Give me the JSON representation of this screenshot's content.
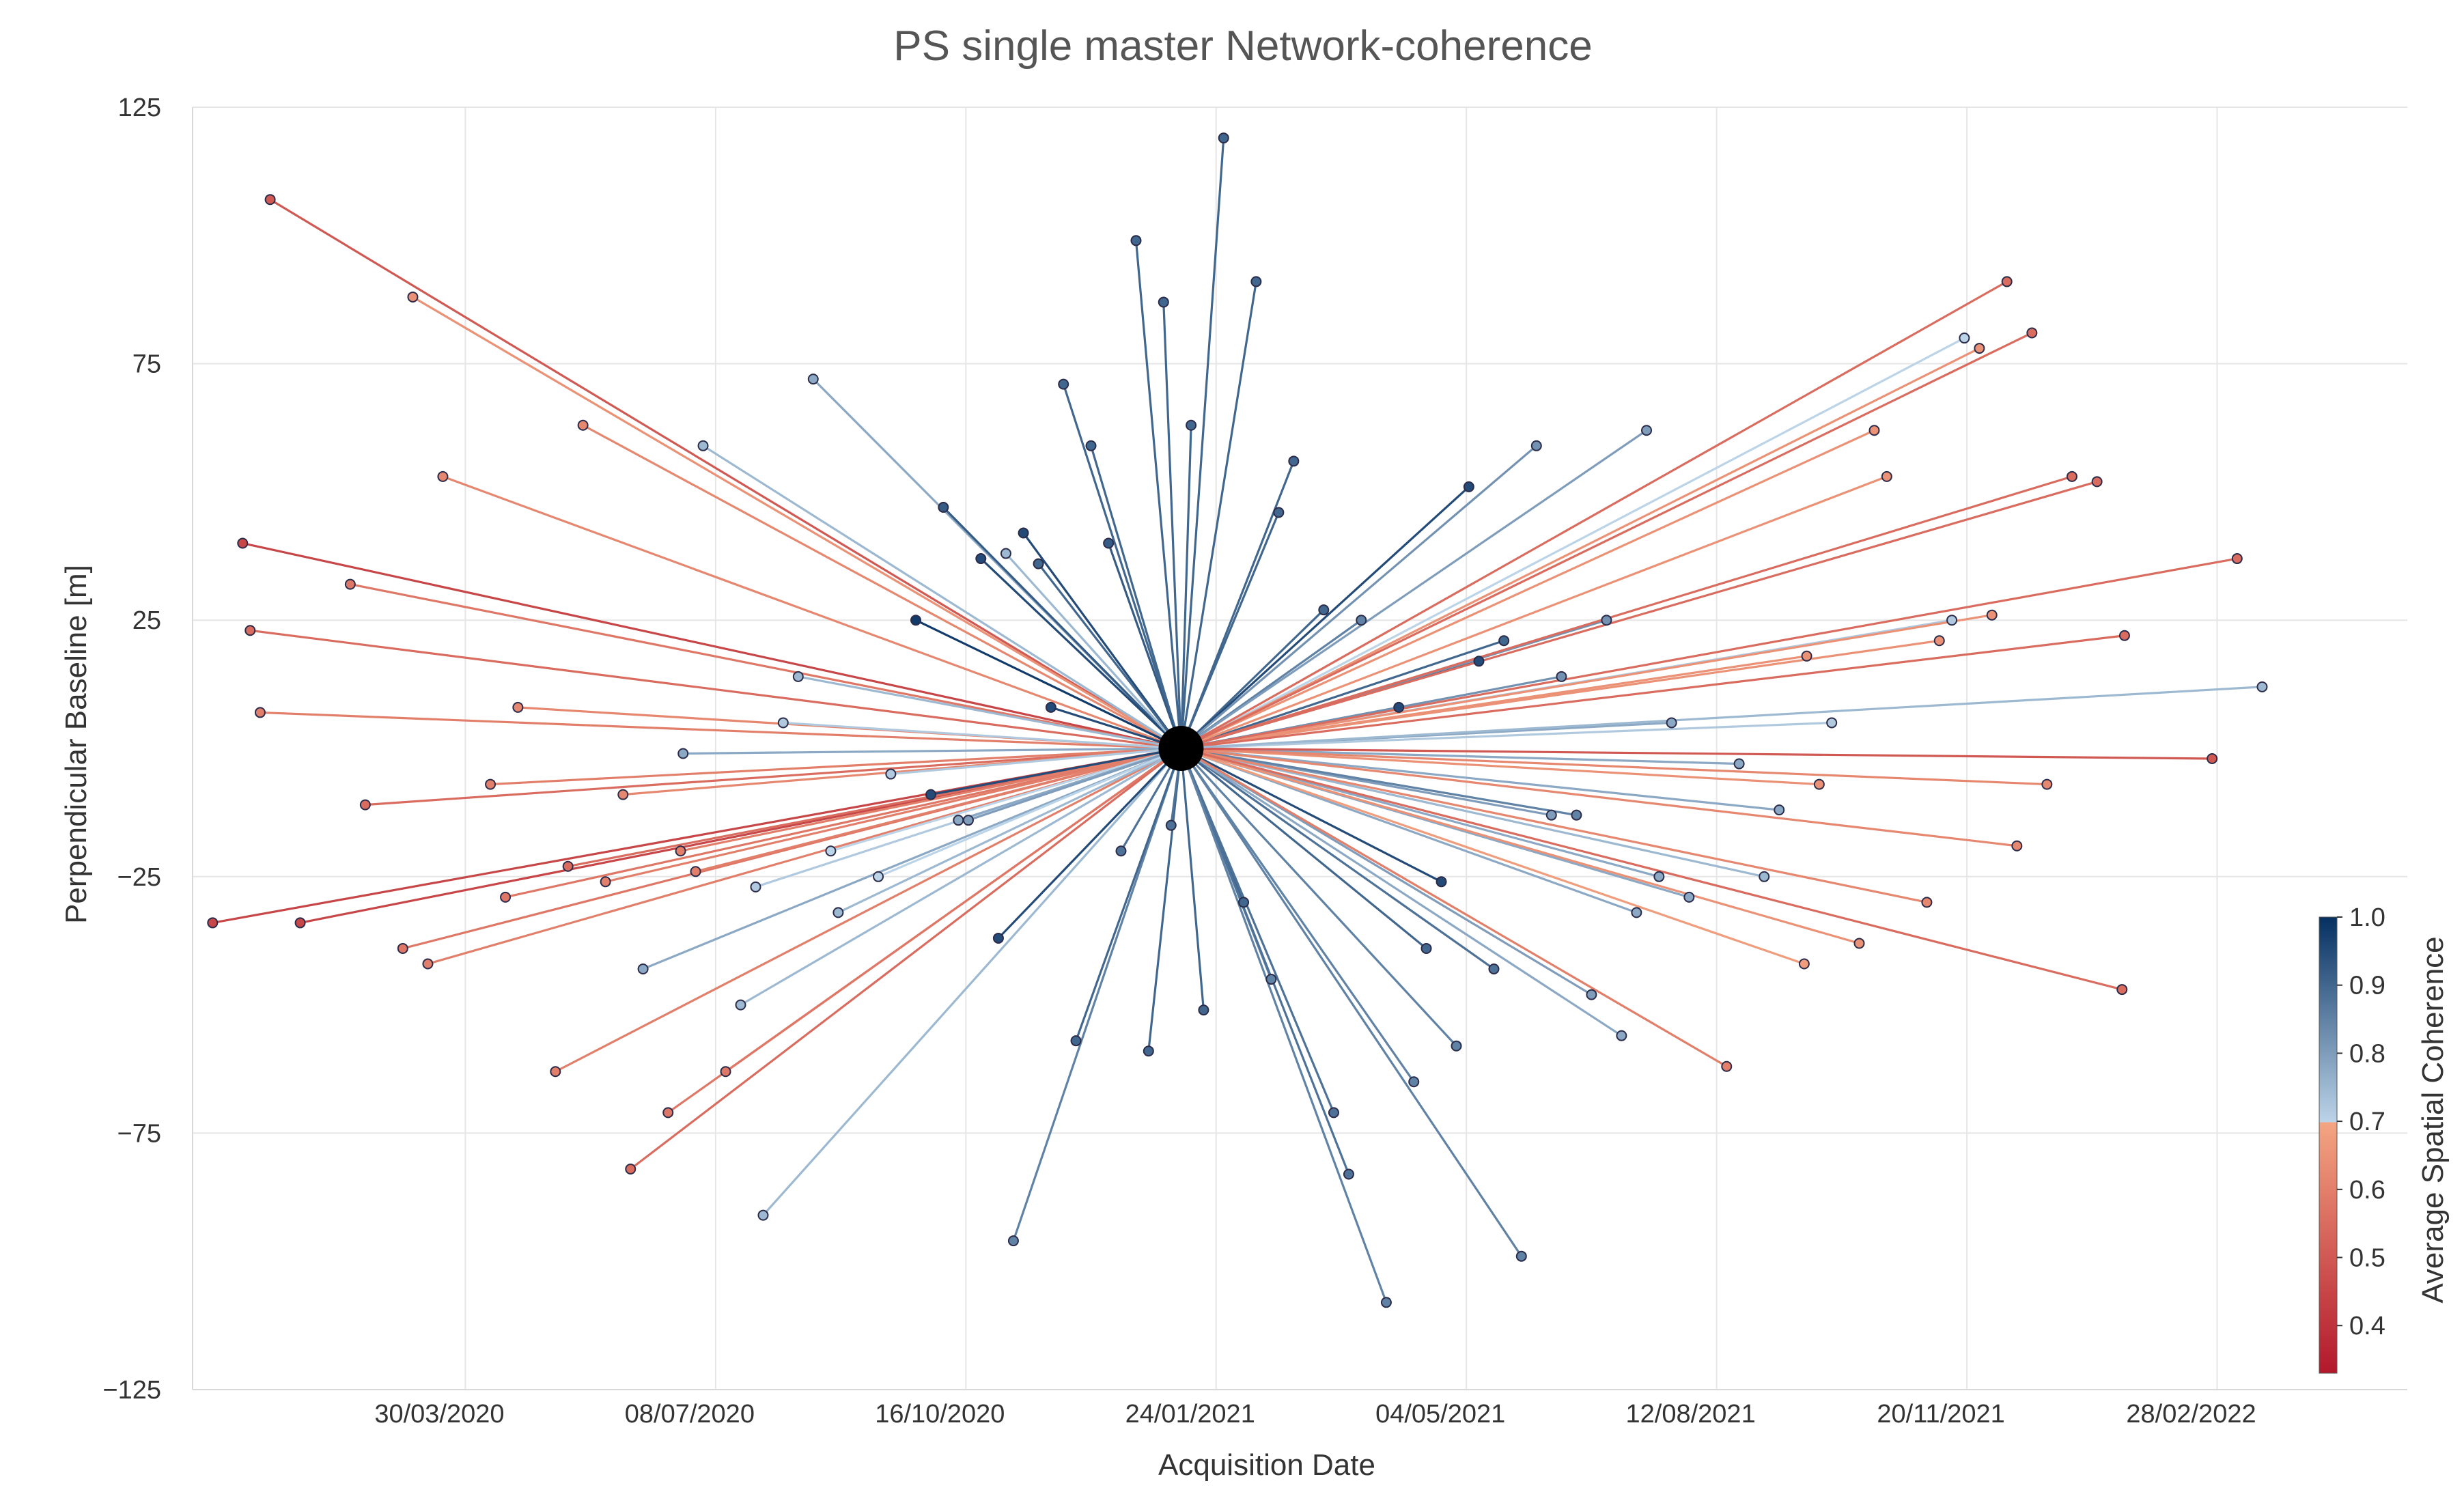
{
  "chart_data": {
    "type": "scatter",
    "title": "PS single master Network-coherence",
    "xlabel": "Acquisition Date",
    "ylabel": "Perpendicular Baseline [m]",
    "xlim": [
      "2019-12-12",
      "2022-05-15"
    ],
    "ylim": [
      -125,
      125
    ],
    "x_ticks": [
      "2020-03-30",
      "2020-07-08",
      "2020-10-16",
      "2021-01-24",
      "2021-05-04",
      "2021-08-12",
      "2021-11-20",
      "2022-02-28"
    ],
    "x_tick_labels": [
      "30/03/2020",
      "08/07/2020",
      "16/10/2020",
      "24/01/2021",
      "04/05/2021",
      "12/08/2021",
      "20/11/2021",
      "28/02/2022"
    ],
    "y_ticks": [
      125,
      75,
      25,
      -25,
      -75,
      -125
    ],
    "y_tick_labels": [
      "125",
      "75",
      "25",
      "−25",
      "−75",
      "−125"
    ],
    "master": {
      "date": "2021-01-10",
      "baseline": 0
    },
    "colorbar": {
      "label": "Average Spatial Coherence",
      "min": 0.33,
      "max": 1.0,
      "ticks": [
        1.0,
        0.9,
        0.8,
        0.7,
        0.6,
        0.5,
        0.4
      ],
      "tick_labels": [
        "1.0",
        "0.9",
        "0.8",
        "0.7",
        "0.6",
        "0.5",
        "0.4"
      ]
    },
    "points": [
      {
        "date": "2020-01-12",
        "b": 107,
        "c": 0.5
      },
      {
        "date": "2020-01-24",
        "b": -34,
        "c": 0.45
      },
      {
        "date": "2020-01-01",
        "b": 40,
        "c": 0.45
      },
      {
        "date": "2019-12-20",
        "b": -34,
        "c": 0.45
      },
      {
        "date": "2020-01-08",
        "b": 7,
        "c": 0.6
      },
      {
        "date": "2020-01-04",
        "b": 23,
        "c": 0.55
      },
      {
        "date": "2020-02-13",
        "b": 32,
        "c": 0.58
      },
      {
        "date": "2020-02-19",
        "b": -11,
        "c": 0.55
      },
      {
        "date": "2020-03-09",
        "b": 88,
        "c": 0.65
      },
      {
        "date": "2020-03-05",
        "b": -39,
        "c": 0.58
      },
      {
        "date": "2020-03-15",
        "b": -42,
        "c": 0.6
      },
      {
        "date": "2020-03-21",
        "b": 53,
        "c": 0.62
      },
      {
        "date": "2020-04-09",
        "b": -7,
        "c": 0.6
      },
      {
        "date": "2020-04-15",
        "b": -29,
        "c": 0.58
      },
      {
        "date": "2020-04-20",
        "b": 8,
        "c": 0.62
      },
      {
        "date": "2020-05-05",
        "b": -63,
        "c": 0.6
      },
      {
        "date": "2020-05-10",
        "b": -23,
        "c": 0.55
      },
      {
        "date": "2020-05-16",
        "b": 63,
        "c": 0.62
      },
      {
        "date": "2020-05-25",
        "b": -26,
        "c": 0.6
      },
      {
        "date": "2020-06-01",
        "b": -9,
        "c": 0.62
      },
      {
        "date": "2020-06-04",
        "b": -82,
        "c": 0.55
      },
      {
        "date": "2020-06-09",
        "b": -43,
        "c": 0.78
      },
      {
        "date": "2020-06-19",
        "b": -71,
        "c": 0.58
      },
      {
        "date": "2020-06-25",
        "b": -1,
        "c": 0.78
      },
      {
        "date": "2020-06-24",
        "b": -20,
        "c": 0.6
      },
      {
        "date": "2020-06-30",
        "b": -24,
        "c": 0.6
      },
      {
        "date": "2020-07-03",
        "b": 59,
        "c": 0.75
      },
      {
        "date": "2020-07-12",
        "b": -63,
        "c": 0.58
      },
      {
        "date": "2020-07-18",
        "b": -50,
        "c": 0.75
      },
      {
        "date": "2020-07-24",
        "b": -27,
        "c": 0.72
      },
      {
        "date": "2020-07-27",
        "b": -91,
        "c": 0.75
      },
      {
        "date": "2020-08-04",
        "b": 5,
        "c": 0.72
      },
      {
        "date": "2020-08-10",
        "b": 14,
        "c": 0.75
      },
      {
        "date": "2020-08-16",
        "b": 72,
        "c": 0.78
      },
      {
        "date": "2020-08-26",
        "b": -32,
        "c": 0.75
      },
      {
        "date": "2020-08-23",
        "b": -20,
        "c": 0.7
      },
      {
        "date": "2020-09-11",
        "b": -25,
        "c": 0.7
      },
      {
        "date": "2020-09-16",
        "b": -5,
        "c": 0.72
      },
      {
        "date": "2020-09-26",
        "b": 25,
        "c": 0.98
      },
      {
        "date": "2020-10-02",
        "b": -9,
        "c": 0.95
      },
      {
        "date": "2020-10-07",
        "b": 47,
        "c": 0.92
      },
      {
        "date": "2020-10-13",
        "b": -14,
        "c": 0.78
      },
      {
        "date": "2020-10-17",
        "b": -14,
        "c": 0.8
      },
      {
        "date": "2020-10-22",
        "b": 37,
        "c": 0.95
      },
      {
        "date": "2020-10-29",
        "b": -37,
        "c": 0.95
      },
      {
        "date": "2020-11-04",
        "b": -96,
        "c": 0.85
      },
      {
        "date": "2020-11-01",
        "b": 38,
        "c": 0.75
      },
      {
        "date": "2020-11-08",
        "b": 42,
        "c": 0.95
      },
      {
        "date": "2020-11-14",
        "b": 36,
        "c": 0.9
      },
      {
        "date": "2020-11-19",
        "b": 8,
        "c": 0.95
      },
      {
        "date": "2020-11-24",
        "b": 71,
        "c": 0.9
      },
      {
        "date": "2020-11-29",
        "b": -57,
        "c": 0.9
      },
      {
        "date": "2020-12-05",
        "b": 59,
        "c": 0.9
      },
      {
        "date": "2020-12-12",
        "b": 40,
        "c": 0.92
      },
      {
        "date": "2020-12-17",
        "b": -20,
        "c": 0.88
      },
      {
        "date": "2020-12-23",
        "b": 99,
        "c": 0.9
      },
      {
        "date": "2020-12-28",
        "b": -59,
        "c": 0.9
      },
      {
        "date": "2021-01-03",
        "b": 87,
        "c": 0.9
      },
      {
        "date": "2021-01-06",
        "b": -15,
        "c": 0.88
      },
      {
        "date": "2021-01-14",
        "b": 63,
        "c": 0.9
      },
      {
        "date": "2021-01-19",
        "b": -51,
        "c": 0.9
      },
      {
        "date": "2021-01-27",
        "b": 119,
        "c": 0.9
      },
      {
        "date": "2021-02-04",
        "b": -30,
        "c": 0.9
      },
      {
        "date": "2021-02-09",
        "b": 91,
        "c": 0.9
      },
      {
        "date": "2021-02-15",
        "b": -45,
        "c": 0.85
      },
      {
        "date": "2021-02-18",
        "b": 46,
        "c": 0.9
      },
      {
        "date": "2021-02-24",
        "b": 56,
        "c": 0.9
      },
      {
        "date": "2021-03-08",
        "b": 27,
        "c": 0.9
      },
      {
        "date": "2021-03-12",
        "b": -71,
        "c": 0.88
      },
      {
        "date": "2021-03-18",
        "b": -83,
        "c": 0.88
      },
      {
        "date": "2021-03-23",
        "b": 25,
        "c": 0.85
      },
      {
        "date": "2021-04-02",
        "b": -108,
        "c": 0.85
      },
      {
        "date": "2021-04-07",
        "b": 8,
        "c": 0.95
      },
      {
        "date": "2021-04-13",
        "b": -65,
        "c": 0.85
      },
      {
        "date": "2021-04-18",
        "b": -39,
        "c": 0.9
      },
      {
        "date": "2021-04-24",
        "b": -26,
        "c": 0.95
      },
      {
        "date": "2021-04-30",
        "b": -58,
        "c": 0.85
      },
      {
        "date": "2021-05-05",
        "b": 51,
        "c": 0.95
      },
      {
        "date": "2021-05-09",
        "b": 17,
        "c": 0.95
      },
      {
        "date": "2021-05-15",
        "b": -43,
        "c": 0.88
      },
      {
        "date": "2021-05-19",
        "b": 21,
        "c": 0.9
      },
      {
        "date": "2021-05-26",
        "b": -99,
        "c": 0.85
      },
      {
        "date": "2021-06-01",
        "b": 59,
        "c": 0.82
      },
      {
        "date": "2021-06-07",
        "b": -13,
        "c": 0.8
      },
      {
        "date": "2021-06-11",
        "b": 14,
        "c": 0.82
      },
      {
        "date": "2021-06-17",
        "b": -13,
        "c": 0.85
      },
      {
        "date": "2021-06-23",
        "b": -48,
        "c": 0.8
      },
      {
        "date": "2021-06-29",
        "b": 25,
        "c": 0.82
      },
      {
        "date": "2021-07-05",
        "b": -56,
        "c": 0.78
      },
      {
        "date": "2021-07-11",
        "b": -32,
        "c": 0.78
      },
      {
        "date": "2021-07-15",
        "b": 62,
        "c": 0.8
      },
      {
        "date": "2021-07-20",
        "b": -25,
        "c": 0.78
      },
      {
        "date": "2021-07-25",
        "b": 5,
        "c": 0.78
      },
      {
        "date": "2021-08-01",
        "b": -29,
        "c": 0.78
      },
      {
        "date": "2021-08-16",
        "b": -62,
        "c": 0.6
      },
      {
        "date": "2021-08-21",
        "b": -3,
        "c": 0.78
      },
      {
        "date": "2021-08-31",
        "b": -25,
        "c": 0.75
      },
      {
        "date": "2021-09-06",
        "b": -12,
        "c": 0.78
      },
      {
        "date": "2021-09-16",
        "b": -42,
        "c": 0.68
      },
      {
        "date": "2021-09-17",
        "b": 18,
        "c": 0.65
      },
      {
        "date": "2021-09-22",
        "b": -7,
        "c": 0.65
      },
      {
        "date": "2021-09-27",
        "b": 5,
        "c": 0.72
      },
      {
        "date": "2021-10-08",
        "b": -38,
        "c": 0.65
      },
      {
        "date": "2021-10-14",
        "b": 62,
        "c": 0.65
      },
      {
        "date": "2021-10-19",
        "b": 53,
        "c": 0.65
      },
      {
        "date": "2021-11-04",
        "b": -30,
        "c": 0.62
      },
      {
        "date": "2021-11-09",
        "b": 21,
        "c": 0.65
      },
      {
        "date": "2021-11-14",
        "b": 25,
        "c": 0.72
      },
      {
        "date": "2021-11-19",
        "b": 80,
        "c": 0.7
      },
      {
        "date": "2021-11-25",
        "b": 78,
        "c": 0.65
      },
      {
        "date": "2021-11-30",
        "b": 26,
        "c": 0.65
      },
      {
        "date": "2021-12-10",
        "b": -19,
        "c": 0.62
      },
      {
        "date": "2021-12-06",
        "b": 91,
        "c": 0.55
      },
      {
        "date": "2021-12-16",
        "b": 81,
        "c": 0.55
      },
      {
        "date": "2021-12-22",
        "b": -7,
        "c": 0.62
      },
      {
        "date": "2022-01-01",
        "b": 53,
        "c": 0.55
      },
      {
        "date": "2022-01-11",
        "b": 52,
        "c": 0.55
      },
      {
        "date": "2022-01-21",
        "b": -47,
        "c": 0.55
      },
      {
        "date": "2022-01-22",
        "b": 22,
        "c": 0.55
      },
      {
        "date": "2022-02-26",
        "b": -2,
        "c": 0.5
      },
      {
        "date": "2022-03-08",
        "b": 37,
        "c": 0.55
      },
      {
        "date": "2022-03-18",
        "b": 12,
        "c": 0.75
      }
    ]
  }
}
